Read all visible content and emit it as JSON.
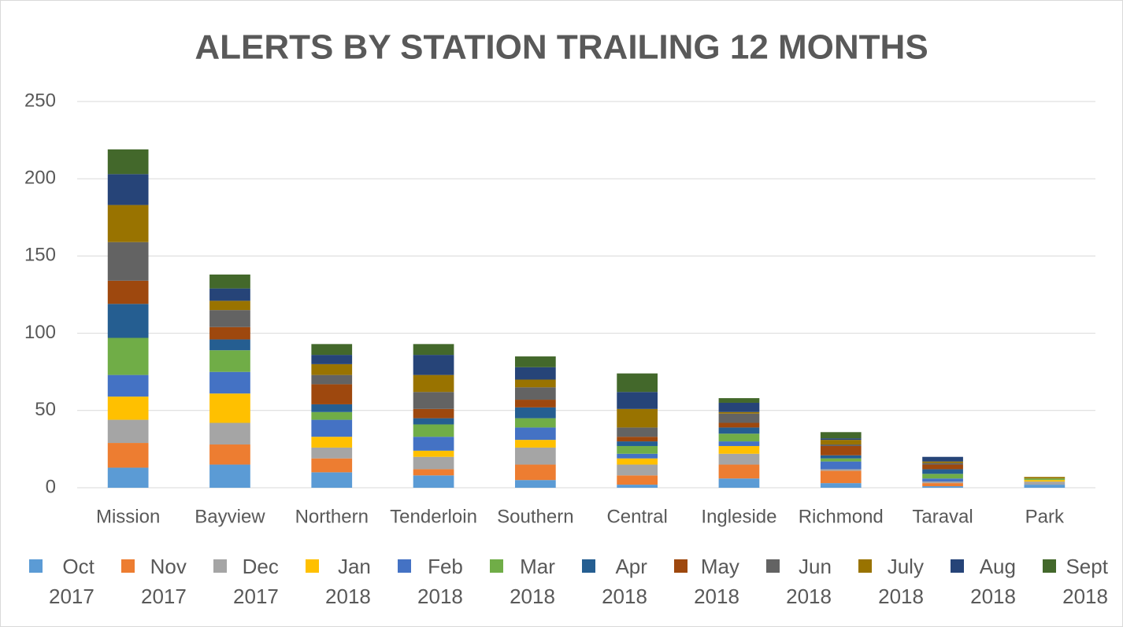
{
  "chart_data": {
    "type": "stacked_bar",
    "title": "ALERTS BY STATION TRAILING 12 MONTHS",
    "categories": [
      "Mission",
      "Bayview",
      "Northern",
      "Tenderloin",
      "Southern",
      "Central",
      "Ingleside",
      "Richmond",
      "Taraval",
      "Park"
    ],
    "series": [
      {
        "name": "Oct 2017",
        "color": "#5b9bd5",
        "values": [
          13,
          15,
          10,
          8,
          5,
          2,
          6,
          3,
          1,
          2
        ]
      },
      {
        "name": "Nov 2017",
        "color": "#ed7d31",
        "values": [
          16,
          13,
          9,
          4,
          10,
          6,
          9,
          8,
          2,
          0
        ]
      },
      {
        "name": "Dec 2017",
        "color": "#a5a5a5",
        "values": [
          15,
          14,
          7,
          8,
          11,
          7,
          7,
          1,
          1,
          2
        ]
      },
      {
        "name": "Jan 2018",
        "color": "#ffc000",
        "values": [
          15,
          19,
          7,
          4,
          5,
          4,
          5,
          0,
          0,
          1
        ]
      },
      {
        "name": "Feb 2018",
        "color": "#4472c4",
        "values": [
          14,
          14,
          11,
          9,
          8,
          3,
          3,
          5,
          2,
          0
        ]
      },
      {
        "name": "Mar 2018",
        "color": "#70ad47",
        "values": [
          24,
          14,
          5,
          8,
          6,
          5,
          5,
          2,
          3,
          1
        ]
      },
      {
        "name": "Apr 2018",
        "color": "#255e91",
        "values": [
          22,
          7,
          5,
          4,
          7,
          3,
          4,
          2,
          3,
          0
        ]
      },
      {
        "name": "May 2018",
        "color": "#9e480e",
        "values": [
          15,
          8,
          13,
          6,
          5,
          3,
          3,
          6,
          3,
          0
        ]
      },
      {
        "name": "Jun 2018",
        "color": "#636363",
        "values": [
          25,
          11,
          6,
          11,
          8,
          6,
          6,
          1,
          1,
          0
        ]
      },
      {
        "name": "July 2018",
        "color": "#997300",
        "values": [
          24,
          6,
          7,
          11,
          5,
          12,
          1,
          3,
          1,
          1
        ]
      },
      {
        "name": "Aug 2018",
        "color": "#264478",
        "values": [
          20,
          8,
          6,
          13,
          8,
          11,
          6,
          1,
          3,
          0
        ]
      },
      {
        "name": "Sept 2018",
        "color": "#43682b",
        "values": [
          16,
          9,
          7,
          7,
          7,
          12,
          3,
          4,
          0,
          0
        ]
      }
    ],
    "ylim": [
      0,
      250
    ],
    "yticks": [
      0,
      50,
      100,
      150,
      200,
      250
    ],
    "grid": true
  }
}
